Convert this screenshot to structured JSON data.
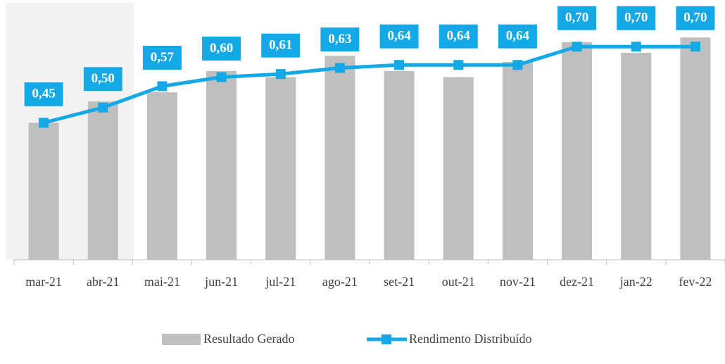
{
  "chart_data": {
    "type": "bar_line",
    "categories": [
      "mar-21",
      "abr-21",
      "mai-21",
      "jun-21",
      "jul-21",
      "ago-21",
      "set-21",
      "out-21",
      "nov-21",
      "dez-21",
      "jan-22",
      "fev-22"
    ],
    "series": [
      {
        "name": "Resultado Gerado",
        "type": "bar",
        "color": "#bfbfbf",
        "values": [
          0.45,
          0.52,
          0.55,
          0.62,
          0.6,
          0.67,
          0.62,
          0.6,
          0.65,
          0.715,
          0.68,
          0.73
        ]
      },
      {
        "name": "Rendimento Distribuído",
        "type": "line",
        "color": "#14a9e6",
        "values": [
          0.45,
          0.5,
          0.57,
          0.6,
          0.61,
          0.63,
          0.64,
          0.64,
          0.64,
          0.7,
          0.7,
          0.7
        ],
        "value_labels": [
          "0,45",
          "0,50",
          "0,57",
          "0,60",
          "0,61",
          "0,63",
          "0,64",
          "0,64",
          "0,64",
          "0,70",
          "0,70",
          "0,70"
        ]
      }
    ],
    "ylim": [
      0,
      0.8
    ],
    "legend": "bottom"
  }
}
